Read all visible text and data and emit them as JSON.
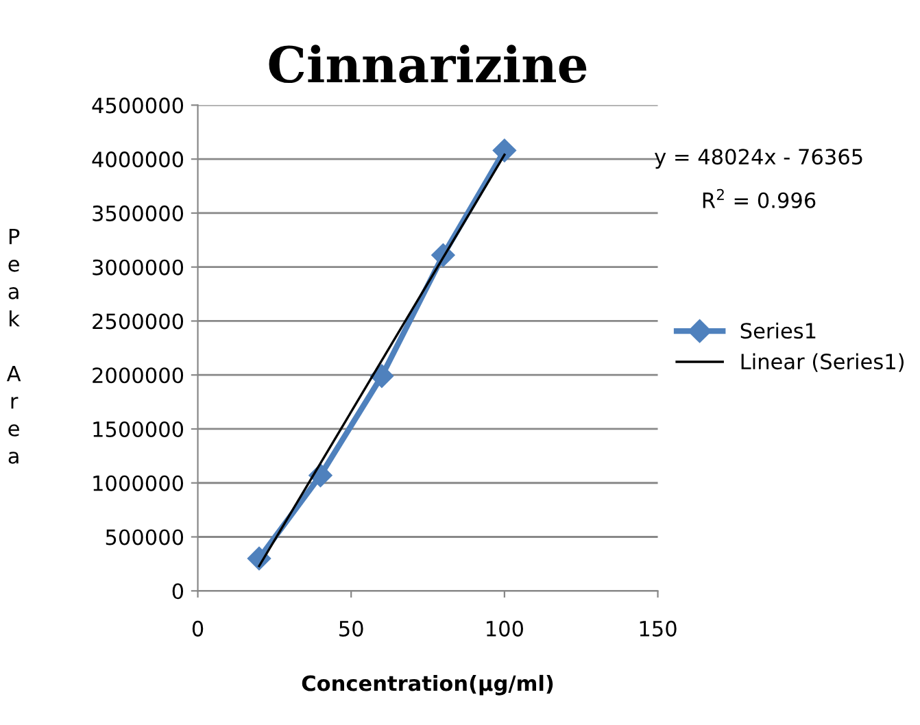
{
  "chart_data": {
    "type": "line",
    "title": "Cinnarizine",
    "xlabel": "Concentration(μg/ml)",
    "ylabel": "Peak Area",
    "x": [
      20,
      40,
      60,
      80,
      100
    ],
    "series": [
      {
        "name": "Series1",
        "color": "#4f81bd",
        "values": [
          300000,
          1070000,
          1990000,
          3110000,
          4080000
        ],
        "marker": "diamond"
      },
      {
        "name": "Linear (Series1)",
        "color": "#000000",
        "x": [
          20,
          100
        ],
        "values": [
          230000,
          4040000
        ],
        "marker": "none"
      }
    ],
    "xlim": [
      0,
      150
    ],
    "xticks": [
      0,
      50,
      100,
      150
    ],
    "ylim": [
      0,
      4500000
    ],
    "yticks": [
      0,
      500000,
      1000000,
      1500000,
      2000000,
      2500000,
      3000000,
      3500000,
      4000000,
      4500000
    ],
    "grid": "y",
    "legend": "right",
    "annotations": [
      "y = 48024x - 76365",
      "R$^{2}$ = 0.996"
    ]
  }
}
